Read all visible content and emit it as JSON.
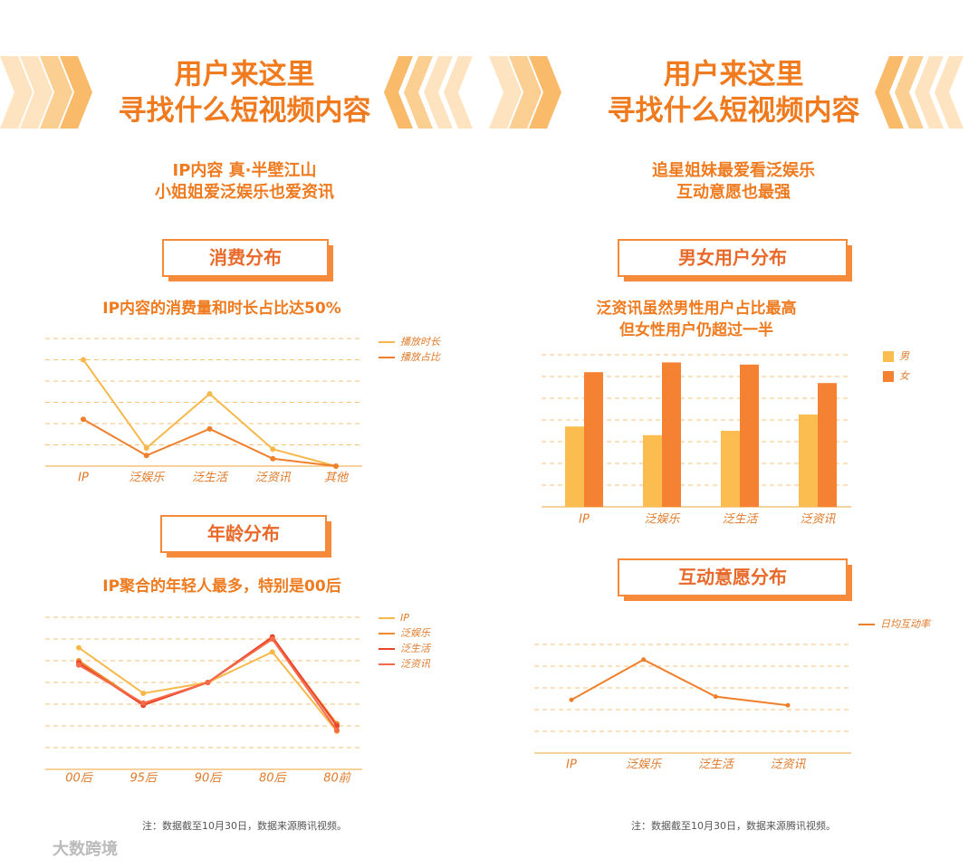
{
  "panels": [
    {
      "heading": [
        "用户来这里",
        "寻找什么短视频内容"
      ],
      "intro": [
        "IP内容 真·半壁江山",
        "小姐姐爱泛娱乐也爱资讯"
      ],
      "note": "注：数据截至10月30日，数据来源腾讯视频。"
    },
    {
      "heading": [
        "用户来这里",
        "寻找什么短视频内容"
      ],
      "intro": [
        "追星姐妹最爱看泛娱乐",
        "互动意愿也最强"
      ],
      "note": "注：数据截至10月30日，数据来源腾讯视频。"
    }
  ],
  "watermark": "大数跨境",
  "chart_data": [
    {
      "type": "line",
      "section": "消费分布",
      "title": "IP内容的消费量和时长占比达50%",
      "categories": [
        "IP",
        "泛娱乐",
        "泛生活",
        "泛资讯",
        "其他"
      ],
      "series": [
        {
          "name": "播放时长",
          "color": "#f7b84b",
          "values": [
            5.0,
            0.85,
            3.4,
            0.8,
            0
          ]
        },
        {
          "name": "播放占比",
          "color": "#f07f2c",
          "values": [
            2.2,
            0.5,
            1.75,
            0.35,
            0
          ]
        }
      ],
      "ylim": [
        0,
        6
      ],
      "grid": true,
      "markers": true
    },
    {
      "type": "line",
      "section": "年龄分布",
      "title": "IP聚合的年轻人最多，特别是00后",
      "categories": [
        "00后",
        "95后",
        "90后",
        "80后",
        "80前"
      ],
      "series": [
        {
          "name": "IP",
          "color": "#f7b84b",
          "values": [
            5.6,
            3.5,
            4.0,
            5.4,
            1.75
          ]
        },
        {
          "name": "泛娱乐",
          "color": "#f08a2c",
          "values": [
            5.0,
            3.0,
            4.0,
            6.0,
            2.1
          ]
        },
        {
          "name": "泛生活",
          "color": "#e8452a",
          "values": [
            4.9,
            2.95,
            4.0,
            6.1,
            2.0
          ]
        },
        {
          "name": "泛资讯",
          "color": "#f46a4a",
          "values": [
            4.8,
            3.05,
            4.0,
            6.0,
            1.8
          ]
        }
      ],
      "ylim": [
        0,
        7
      ],
      "grid": true,
      "markers": true
    },
    {
      "type": "bar",
      "section": "男女用户分布",
      "title": [
        "泛资讯虽然男性用户占比最高",
        "但女性用户仍超过一半"
      ],
      "categories": [
        "IP",
        "泛娱乐",
        "泛生活",
        "泛资讯"
      ],
      "series": [
        {
          "name": "男",
          "color": "#fbbd4f",
          "values": [
            3.7,
            3.3,
            3.5,
            4.25
          ]
        },
        {
          "name": "女",
          "color": "#f58232",
          "values": [
            6.2,
            6.65,
            6.55,
            5.7
          ]
        }
      ],
      "ylim": [
        0,
        7
      ],
      "grid": true
    },
    {
      "type": "line",
      "section": "互动意愿分布",
      "categories": [
        "IP",
        "泛娱乐",
        "泛生活",
        "泛资讯"
      ],
      "series": [
        {
          "name": "日均互动率",
          "color": "#f07f2c",
          "values": [
            2.45,
            4.3,
            2.6,
            2.2
          ]
        }
      ],
      "ylim": [
        0,
        5
      ],
      "grid": true,
      "markers": false
    }
  ]
}
